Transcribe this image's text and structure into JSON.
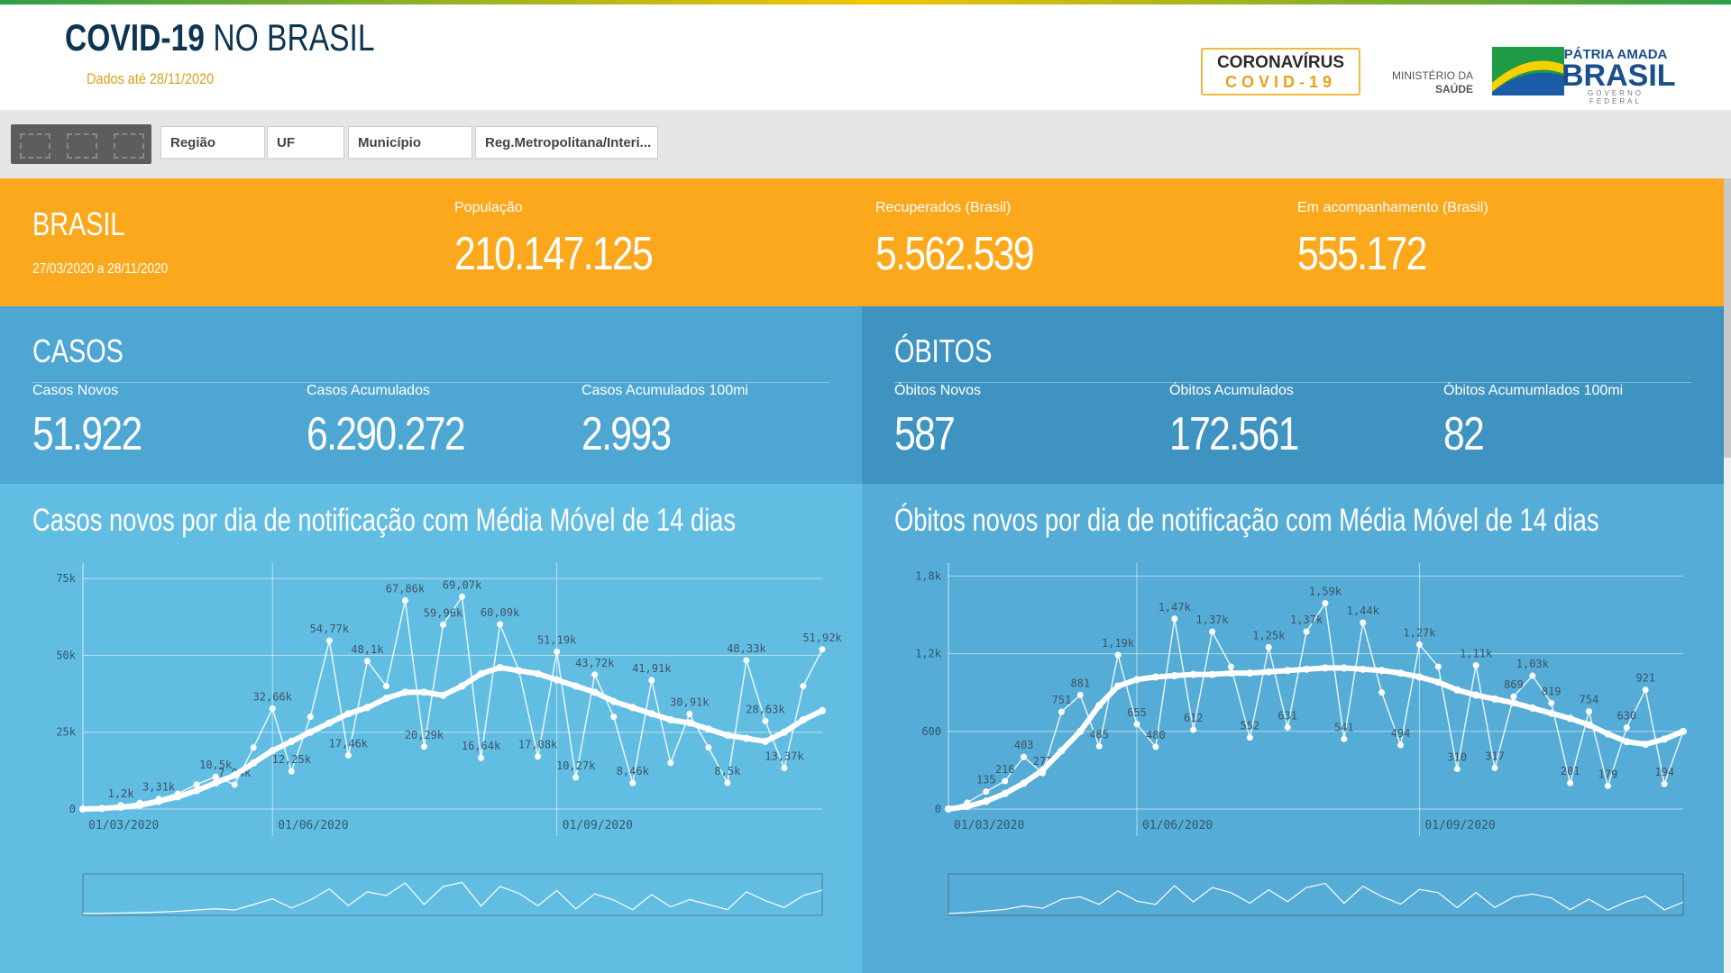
{
  "header": {
    "title_bold": "COVID-19",
    "title_light": "NO BRASIL",
    "subtitle": "Dados até 28/11/2020",
    "logos": {
      "coronavirus": "CORONAVÍRUS",
      "covid": "COVID-19",
      "ministerio": "MINISTÉRIO DA",
      "saude": "SAÚDE",
      "patria": "PÁTRIA AMADA",
      "brasil": "BRASIL",
      "governo": "GOVERNO FEDERAL"
    }
  },
  "filters": [
    "Região",
    "UF",
    "Município",
    "Reg.Metropolitana/Interi..."
  ],
  "summary": {
    "region": "BRASIL",
    "period": "27/03/2020 a 28/11/2020",
    "stats": [
      {
        "label": "População",
        "value": "210.147.125"
      },
      {
        "label": "Recuperados (Brasil)",
        "value": "5.562.539"
      },
      {
        "label": "Em acompanhamento (Brasil)",
        "value": "555.172"
      }
    ]
  },
  "casos": {
    "title": "CASOS",
    "stats": [
      {
        "label": "Casos Novos",
        "value": "51.922"
      },
      {
        "label": "Casos Acumulados",
        "value": "6.290.272"
      },
      {
        "label": "Casos Acumulados 100mi",
        "value": "2.993"
      }
    ]
  },
  "obitos": {
    "title": "ÓBITOS",
    "stats": [
      {
        "label": "Óbitos Novos",
        "value": "587"
      },
      {
        "label": "Óbitos Acumulados",
        "value": "172.561"
      },
      {
        "label": "Óbitos Acumumlados 100mi",
        "value": "82"
      }
    ]
  },
  "chart_data": [
    {
      "type": "line",
      "title": "Casos novos por dia de notificação com Média Móvel de 14 dias",
      "categories": [
        "01/03/2020",
        null,
        null,
        null,
        null,
        null,
        null,
        null,
        null,
        null,
        "01/06/2020",
        null,
        null,
        null,
        null,
        null,
        null,
        null,
        null,
        null,
        null,
        null,
        null,
        null,
        null,
        "01/09/2020",
        null,
        null,
        null,
        null,
        null,
        null,
        null,
        null,
        null,
        null,
        null,
        null,
        null,
        null
      ],
      "series": [
        {
          "color": "#ffffff",
          "values": [
            0,
            300,
            1200,
            2000,
            3310,
            5000,
            8000,
            10500,
            7940,
            20000,
            32660,
            12250,
            30000,
            54770,
            17460,
            48100,
            40000,
            67860,
            20290,
            59960,
            69070,
            16640,
            60090,
            45000,
            17080,
            51190,
            10270,
            43720,
            30000,
            8460,
            41910,
            15000,
            30910,
            20000,
            8500,
            48330,
            28630,
            13370,
            40000,
            51920
          ],
          "value_labels": [
            null,
            null,
            "1,2k",
            null,
            "3,31k",
            null,
            null,
            "10,5k",
            "7,94k",
            null,
            "32,66k",
            "12,25k",
            null,
            "54,77k",
            "17,46k",
            "48,1k",
            null,
            "67,86k",
            "20,29k",
            "59,96k",
            "69,07k",
            "16,64k",
            "60,09k",
            null,
            "17,08k",
            "51,19k",
            "10,27k",
            "43,72k",
            null,
            "8,46k",
            "41,91k",
            null,
            "30,91k",
            null,
            "8,5k",
            "48,33k",
            "28,63k",
            "13,37k",
            null,
            "51,92k"
          ]
        },
        {
          "color": "#ffffff",
          "values": [
            0,
            200,
            600,
            1200,
            2500,
            4000,
            6000,
            8500,
            11000,
            15000,
            19000,
            22000,
            25000,
            28000,
            31000,
            33000,
            36000,
            38000,
            38000,
            37000,
            40000,
            44000,
            46000,
            45000,
            44000,
            42000,
            40000,
            38000,
            35000,
            33000,
            31000,
            29000,
            28000,
            26000,
            24000,
            23000,
            22000,
            25000,
            29000,
            32000
          ]
        }
      ],
      "ylim": [
        0,
        80000
      ],
      "yticks": [
        0,
        {
          "value": 25000,
          "label": "25k"
        },
        {
          "value": 50000,
          "label": "50k"
        },
        {
          "value": 75000,
          "label": "75k"
        }
      ],
      "grid": true
    },
    {
      "type": "line",
      "title": "Óbitos novos por dia de notificação com Média Móvel de 14 dias",
      "categories": [
        "01/03/2020",
        null,
        null,
        null,
        null,
        null,
        null,
        null,
        null,
        null,
        "01/06/2020",
        null,
        null,
        null,
        null,
        null,
        null,
        null,
        null,
        null,
        null,
        null,
        null,
        null,
        null,
        "01/09/2020",
        null,
        null,
        null,
        null,
        null,
        null,
        null,
        null,
        null,
        null,
        null,
        null,
        null,
        null
      ],
      "series": [
        {
          "color": "#ffffff",
          "values": [
            0,
            50,
            135,
            216,
            403,
            277,
            751,
            881,
            485,
            1190,
            655,
            480,
            1470,
            612,
            1370,
            1100,
            552,
            1250,
            631,
            1370,
            1590,
            541,
            1440,
            900,
            494,
            1270,
            1100,
            310,
            1110,
            317,
            869,
            1030,
            819,
            201,
            754,
            179,
            630,
            921,
            194,
            600
          ],
          "value_labels": [
            null,
            null,
            "135",
            "216",
            "403",
            "277",
            "751",
            "881",
            "485",
            "1,19k",
            "655",
            "480",
            "1,47k",
            "612",
            "1,37k",
            null,
            "552",
            "1,25k",
            "631",
            "1,37k",
            "1,59k",
            "541",
            "1,44k",
            null,
            "494",
            "1,27k",
            null,
            "310",
            "1,11k",
            "317",
            "869",
            "1,03k",
            "819",
            "201",
            "754",
            "179",
            "630",
            "921",
            "194",
            null
          ]
        },
        {
          "color": "#ffffff",
          "values": [
            0,
            20,
            60,
            120,
            200,
            300,
            450,
            600,
            800,
            950,
            1000,
            1020,
            1030,
            1040,
            1040,
            1050,
            1050,
            1060,
            1070,
            1080,
            1090,
            1090,
            1080,
            1070,
            1050,
            1020,
            980,
            920,
            880,
            850,
            820,
            780,
            740,
            700,
            650,
            580,
            520,
            500,
            540,
            600
          ]
        }
      ],
      "ylim": [
        0,
        1900
      ],
      "yticks": [
        0,
        600,
        {
          "value": 1200,
          "label": "1,2k"
        },
        {
          "value": 1800,
          "label": "1,8k"
        }
      ],
      "grid": true
    }
  ]
}
